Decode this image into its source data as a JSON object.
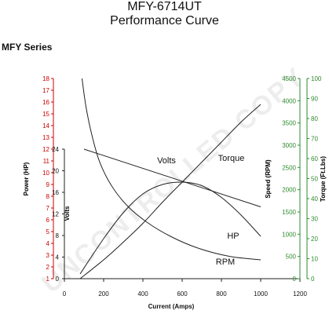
{
  "header": {
    "title": "MFY-6714UT",
    "subtitle": "Performance Curve",
    "series": "MFY Series"
  },
  "watermark": "UNCONTROLLED COPY",
  "colors": {
    "power_axis": "#cc0000",
    "speed_axis": "#2e8b2e",
    "torque_axis": "#2e8b2e",
    "curves": "#222222"
  },
  "chart_data": {
    "type": "line",
    "title": "Performance Curve",
    "xlabel": "Current (Amps)",
    "x_ticks": [
      0,
      200,
      400,
      600,
      800,
      1000,
      1200
    ],
    "xlim": [
      0,
      1200
    ],
    "grid": false,
    "axes": {
      "power": {
        "label": "Power (HP)",
        "range": [
          1,
          18
        ],
        "ticks": [
          1,
          2,
          3,
          4,
          5,
          6,
          7,
          8,
          9,
          10,
          11,
          12,
          13,
          14,
          15,
          16,
          17,
          18
        ]
      },
      "volts": {
        "label": "Volts",
        "range": [
          0,
          24
        ],
        "ticks": [
          0,
          4,
          8,
          12,
          16,
          20,
          24
        ]
      },
      "speed": {
        "label": "Speed (RPM)",
        "range": [
          0,
          4500
        ],
        "ticks": [
          0,
          500,
          1000,
          1500,
          2000,
          2500,
          3000,
          3500,
          4000,
          4500
        ]
      },
      "torque": {
        "label": "Torque (Ft.Lbs)",
        "range": [
          0,
          100
        ],
        "ticks": [
          0,
          10,
          20,
          30,
          40,
          50,
          60,
          70,
          80,
          90,
          100
        ]
      }
    },
    "series": [
      {
        "name": "Volts",
        "axis": "power",
        "x": [
          100,
          1000
        ],
        "y": [
          12.0,
          7.1
        ]
      },
      {
        "name": "Torque",
        "axis": "power",
        "x": [
          80,
          200,
          300,
          400,
          500,
          600,
          700,
          800,
          900,
          1000
        ],
        "y": [
          1.0,
          2.6,
          4.1,
          5.7,
          7.5,
          9.2,
          10.9,
          12.6,
          14.3,
          15.8
        ]
      },
      {
        "name": "HP",
        "axis": "power",
        "x": [
          80,
          200,
          300,
          400,
          500,
          600,
          700,
          800,
          900,
          1000
        ],
        "y": [
          1.4,
          4.4,
          6.6,
          8.2,
          9.0,
          9.2,
          8.9,
          7.9,
          6.4,
          4.6
        ]
      },
      {
        "name": "RPM",
        "axis": "power",
        "x": [
          90,
          110,
          140,
          180,
          240,
          320,
          420,
          540,
          680,
          840,
          1000
        ],
        "y": [
          18,
          15.6,
          13.2,
          10.9,
          8.9,
          7.2,
          5.8,
          4.6,
          3.6,
          2.9,
          2.6
        ]
      }
    ],
    "curve_labels": [
      "Volts",
      "Torque",
      "HP",
      "RPM"
    ]
  }
}
